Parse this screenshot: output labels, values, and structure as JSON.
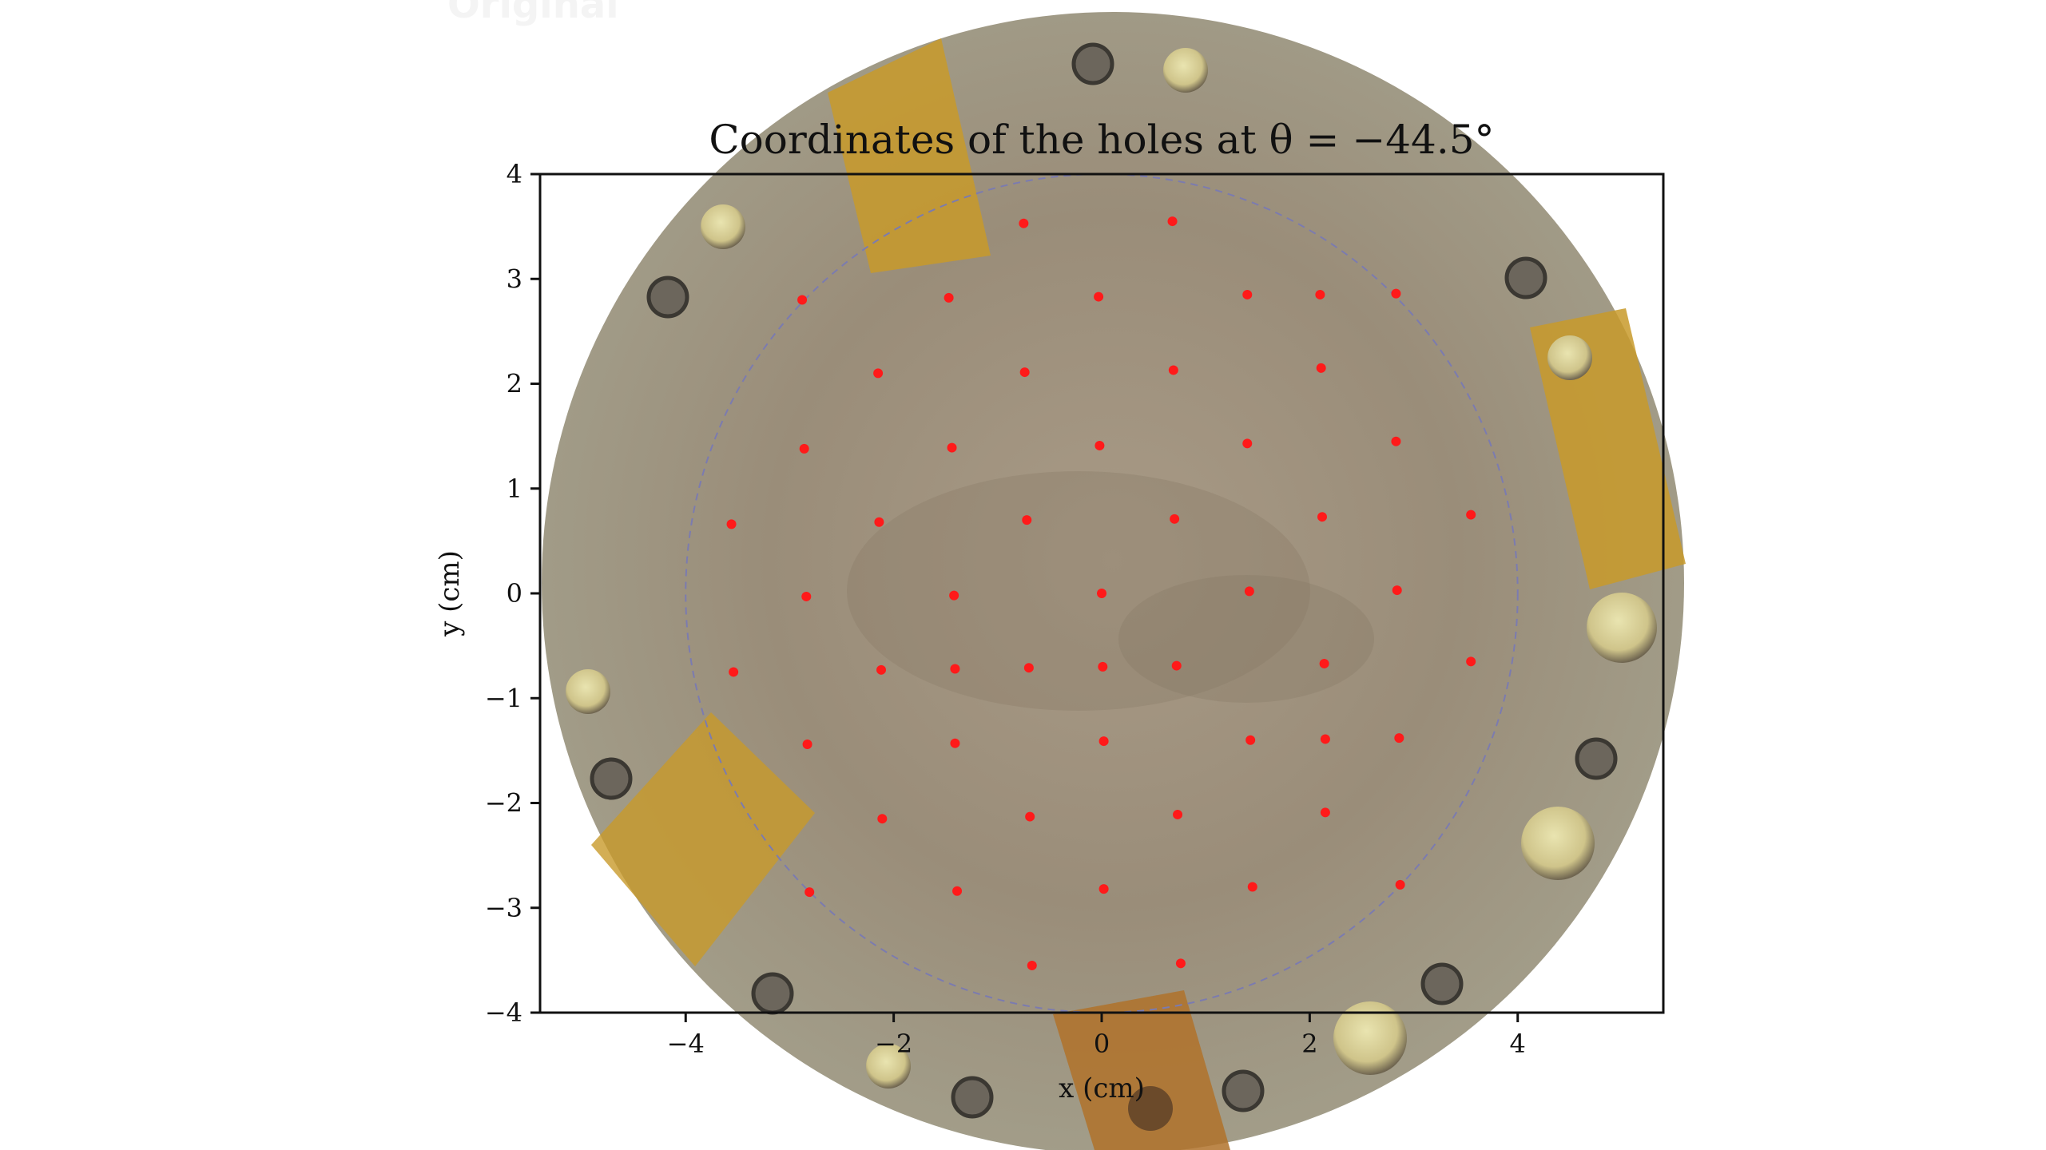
{
  "ghost_label": "Original",
  "chart_data": {
    "type": "scatter",
    "title": "Coordinates of the holes at θ = −44.5°",
    "xlabel": "x (cm)",
    "ylabel": "y (cm)",
    "xlim": [
      -5.4,
      5.4
    ],
    "ylim": [
      -4,
      4
    ],
    "xticks": [
      -4,
      -2,
      0,
      2,
      4
    ],
    "xtick_labels": [
      "−4",
      "−2",
      "0",
      "2",
      "4"
    ],
    "yticks": [
      -4,
      -3,
      -2,
      -1,
      0,
      1,
      2,
      3,
      4
    ],
    "ytick_labels": [
      "−4",
      "−3",
      "−2",
      "−1",
      "0",
      "1",
      "2",
      "3",
      "4"
    ],
    "grid": false,
    "boundary_circle": {
      "center": [
        0,
        0
      ],
      "radius": 4,
      "style": "dashed",
      "color": "#7b7bb0"
    },
    "marker_color": "#ff1a1a",
    "background": "photograph of a circular metal plate with holes, screws and yellow tape",
    "points": [
      {
        "x": -0.75,
        "y": 3.53
      },
      {
        "x": 0.68,
        "y": 3.55
      },
      {
        "x": -2.88,
        "y": 2.8
      },
      {
        "x": -1.47,
        "y": 2.82
      },
      {
        "x": -0.03,
        "y": 2.83
      },
      {
        "x": 1.4,
        "y": 2.85
      },
      {
        "x": 2.1,
        "y": 2.85
      },
      {
        "x": 2.83,
        "y": 2.86
      },
      {
        "x": -2.15,
        "y": 2.1
      },
      {
        "x": -0.74,
        "y": 2.11
      },
      {
        "x": 0.69,
        "y": 2.13
      },
      {
        "x": 2.11,
        "y": 2.15
      },
      {
        "x": -2.86,
        "y": 1.38
      },
      {
        "x": -1.44,
        "y": 1.39
      },
      {
        "x": -0.02,
        "y": 1.41
      },
      {
        "x": 1.4,
        "y": 1.43
      },
      {
        "x": 2.83,
        "y": 1.45
      },
      {
        "x": -3.56,
        "y": 0.66
      },
      {
        "x": -2.14,
        "y": 0.68
      },
      {
        "x": -0.72,
        "y": 0.7
      },
      {
        "x": 0.7,
        "y": 0.71
      },
      {
        "x": 2.12,
        "y": 0.73
      },
      {
        "x": 3.55,
        "y": 0.75
      },
      {
        "x": -2.84,
        "y": -0.03
      },
      {
        "x": -1.42,
        "y": -0.02
      },
      {
        "x": 0.0,
        "y": 0.0
      },
      {
        "x": 1.42,
        "y": 0.02
      },
      {
        "x": 2.84,
        "y": 0.03
      },
      {
        "x": -3.54,
        "y": -0.75
      },
      {
        "x": -2.12,
        "y": -0.73
      },
      {
        "x": -1.41,
        "y": -0.72
      },
      {
        "x": -0.7,
        "y": -0.71
      },
      {
        "x": 0.01,
        "y": -0.7
      },
      {
        "x": 0.72,
        "y": -0.69
      },
      {
        "x": 2.14,
        "y": -0.67
      },
      {
        "x": 3.55,
        "y": -0.65
      },
      {
        "x": -2.83,
        "y": -1.44
      },
      {
        "x": -1.41,
        "y": -1.43
      },
      {
        "x": 0.02,
        "y": -1.41
      },
      {
        "x": 1.43,
        "y": -1.4
      },
      {
        "x": 2.15,
        "y": -1.39
      },
      {
        "x": 2.86,
        "y": -1.38
      },
      {
        "x": -2.11,
        "y": -2.15
      },
      {
        "x": -0.69,
        "y": -2.13
      },
      {
        "x": 0.73,
        "y": -2.11
      },
      {
        "x": 2.15,
        "y": -2.09
      },
      {
        "x": -2.81,
        "y": -2.85
      },
      {
        "x": -1.39,
        "y": -2.84
      },
      {
        "x": 0.02,
        "y": -2.82
      },
      {
        "x": 1.45,
        "y": -2.8
      },
      {
        "x": 2.87,
        "y": -2.78
      },
      {
        "x": -0.67,
        "y": -3.55
      },
      {
        "x": 0.76,
        "y": -3.53
      }
    ]
  }
}
